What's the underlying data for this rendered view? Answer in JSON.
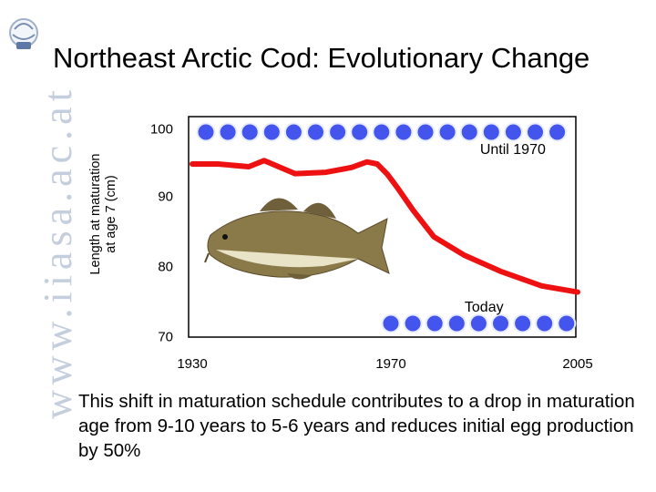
{
  "header": {
    "title": "Northeast Arctic Cod: Evolutionary Change",
    "watermark": "www.iiasa.ac.at",
    "logo_text": "IIASA"
  },
  "chart_data": {
    "type": "line",
    "title": "",
    "ylabel": [
      "Length at maturation",
      "at age 7 (cm)"
    ],
    "xlabel": "",
    "xlim": [
      1930,
      2005
    ],
    "ylim": [
      70,
      100
    ],
    "x_ticks": [
      "1930",
      "1970",
      "2005"
    ],
    "y_ticks": [
      "100",
      "90",
      "80",
      "70"
    ],
    "series": [
      {
        "color": "#ee1111",
        "x": [
          1930,
          1935,
          1941,
          1944,
          1950,
          1956,
          1961,
          1964,
          1966,
          1968,
          1970,
          1973,
          1977,
          1983,
          1990,
          1998,
          2005
        ],
        "y": [
          95.0,
          95.0,
          94.6,
          95.5,
          93.6,
          93.8,
          94.5,
          95.3,
          95.0,
          93.5,
          91.5,
          88.3,
          84.5,
          81.8,
          79.5,
          77.4,
          76.5
        ]
      }
    ],
    "annotations": [
      {
        "text": "Until 1970",
        "x": 1986,
        "y": 96.8
      },
      {
        "text": "Today",
        "x": 1983,
        "y": 74.1
      }
    ],
    "top_bubbles": {
      "count": 17,
      "color": "#4455ee"
    },
    "bottom_bubbles": {
      "count": 9,
      "color": "#4455ee"
    }
  },
  "caption": "This shift in maturation schedule contributes to a drop in maturation age from 9-10 years to 5-6 years and reduces initial egg production by 50%",
  "colors": {
    "plot_bg": "#ffffff",
    "plot_border": "#000000",
    "line": "#ee1111",
    "bubble": "#4455ee",
    "watermark": "#c5cedd"
  },
  "icons": {
    "fish_icon": "cod-fish-illustration",
    "logo_icon": "iiasa-globe-logo"
  }
}
